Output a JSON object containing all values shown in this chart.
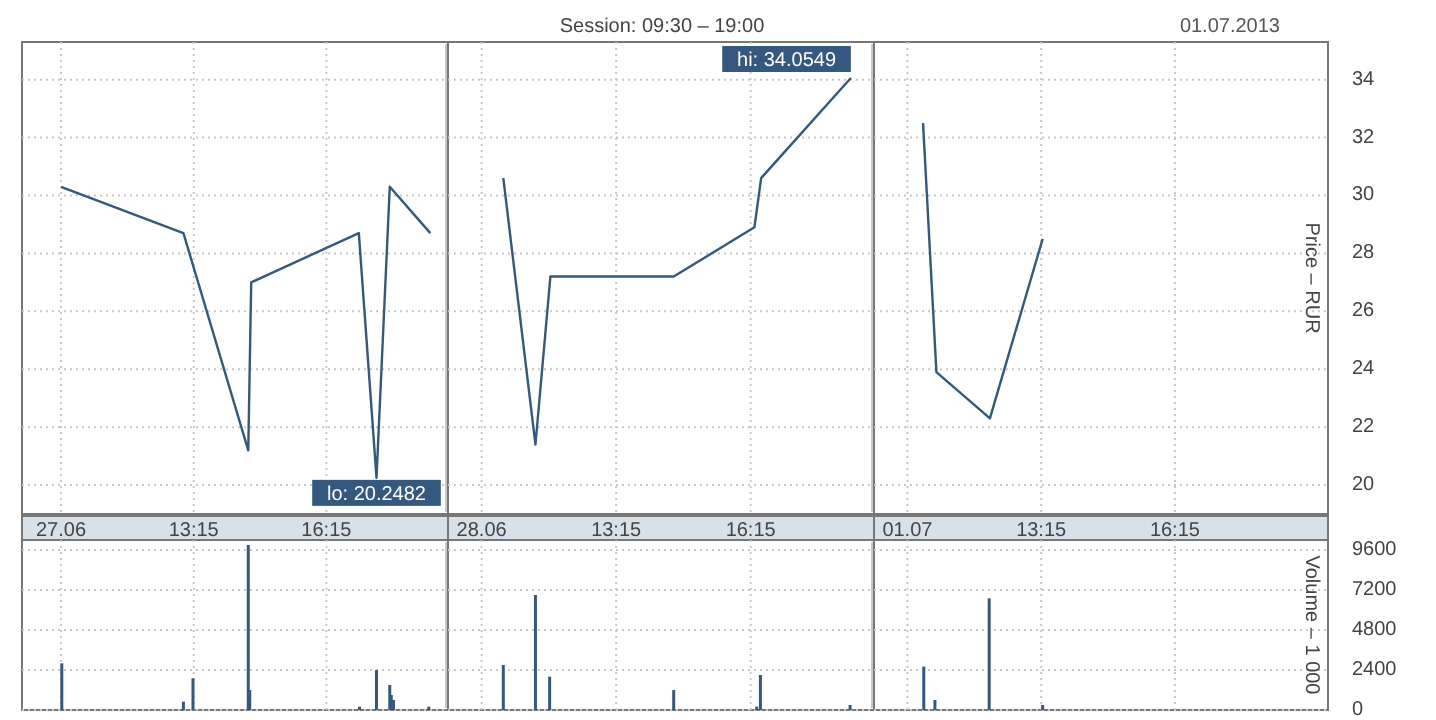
{
  "chart_data": [
    {
      "type": "line",
      "annotations": [
        {
          "text": "lo: 20.2482",
          "x": "2013-06-27T17:23",
          "y": 20.2482
        }
      ],
      "series": [
        {
          "color": "#34587f",
          "x": [
            "2013-06-27T10:15",
            "2013-06-27T13:01",
            "2013-06-27T14:29",
            "2013-06-27T14:33",
            "2013-06-27T16:59",
            "2013-06-27T17:23",
            "2013-06-27T17:41",
            "2013-06-27T18:36"
          ],
          "values": [
            30.3,
            28.7,
            21.2,
            27.0,
            28.7,
            20.2482,
            30.3,
            28.7
          ]
        }
      ],
      "xlim": [
        "2013-06-27T09:22",
        "2013-06-27T19:00"
      ],
      "xticks": [
        {
          "value": "2013-06-27T10:15",
          "label": "27.06"
        },
        {
          "value": "2013-06-27T13:15",
          "label": "13:15"
        },
        {
          "value": "2013-06-27T16:15",
          "label": "16:15"
        }
      ],
      "ylim": [
        19,
        35.3
      ],
      "yticks": [
        20,
        22,
        24,
        26,
        28,
        30,
        32,
        34
      ],
      "ref_lines": [
        {
          "axis": "x",
          "value": "2013-06-27T19:00",
          "color": "#c8c8c8"
        }
      ],
      "grid": true,
      "marker": "none",
      "line_style": "solid",
      "tick_labels": "x"
    },
    {
      "type": "line",
      "title": "Session: 09:30 – 19:00",
      "annotations": [
        {
          "text": "hi: 34.0549",
          "x": "2013-06-28T18:29",
          "y": 34.0549
        }
      ],
      "series": [
        {
          "color": "#34587f",
          "x": [
            "2013-06-28T10:44",
            "2013-06-28T11:27",
            "2013-06-28T11:47",
            "2013-06-28T14:32",
            "2013-06-28T16:20",
            "2013-06-28T16:29",
            "2013-06-28T18:29"
          ],
          "values": [
            30.6,
            21.4,
            27.2,
            27.2,
            28.9,
            30.6,
            34.0549
          ]
        }
      ],
      "xlim": [
        "2013-06-28T09:30",
        "2013-06-28T19:00"
      ],
      "xticks": [
        {
          "value": "2013-06-28T10:15",
          "label": "28.06"
        },
        {
          "value": "2013-06-28T13:15",
          "label": "13:15"
        },
        {
          "value": "2013-06-28T16:15",
          "label": "16:15"
        }
      ],
      "ylim": [
        19,
        35.3
      ],
      "yticks": [
        20,
        22,
        24,
        26,
        28,
        30,
        32,
        34
      ],
      "ref_lines": [
        {
          "axis": "x",
          "value": "2013-06-28T19:00",
          "color": "#c8c8c8"
        }
      ],
      "grid": true,
      "marker": "none",
      "line_style": "solid",
      "tick_labels": "x"
    },
    {
      "type": "line",
      "ylabel": "Price – RUR",
      "annotations": [
        "01.07.2013"
      ],
      "series": [
        {
          "color": "#34587f",
          "x": [
            "2013-07-01T10:36",
            "2013-07-01T10:54",
            "2013-07-01T12:06",
            "2013-07-01T13:17"
          ],
          "values": [
            32.5,
            23.9,
            22.3,
            28.5
          ]
        }
      ],
      "xlim": [
        "2013-07-01T09:30",
        "2013-07-01T19:41"
      ],
      "xticks": [
        {
          "value": "2013-07-01T10:15",
          "label": "01.07"
        },
        {
          "value": "2013-07-01T13:15",
          "label": "13:15"
        },
        {
          "value": "2013-07-01T16:15",
          "label": "16:15"
        }
      ],
      "ylim": [
        19,
        35.3
      ],
      "yticks": [
        20,
        22,
        24,
        26,
        28,
        30,
        32,
        34
      ],
      "grid": true,
      "marker": "none",
      "line_style": "solid"
    },
    {
      "type": "bar",
      "series": [
        {
          "color": "#34587f",
          "x": [
            "2013-06-27T10:16",
            "2013-06-27T13:01",
            "2013-06-27T13:14",
            "2013-06-27T14:29",
            "2013-06-27T14:31",
            "2013-06-27T17:00",
            "2013-06-27T17:23",
            "2013-06-27T17:41",
            "2013-06-27T17:43",
            "2013-06-27T17:46",
            "2013-06-27T18:34"
          ],
          "values": [
            2800,
            500,
            1900,
            9900,
            1200,
            200,
            2400,
            1500,
            900,
            600,
            200
          ]
        }
      ],
      "xlim": [
        "2013-06-27T09:22",
        "2013-06-27T19:00"
      ],
      "xticks": [
        {
          "value": "2013-06-27T10:15",
          "label": null
        },
        {
          "value": "2013-06-27T13:15",
          "label": null
        },
        {
          "value": "2013-06-27T16:15",
          "label": null
        }
      ],
      "ylim": [
        0,
        10200
      ],
      "yticks": [
        0,
        2400,
        4800,
        7200,
        9600
      ],
      "ref_lines": [
        {
          "axis": "x",
          "value": "2013-06-27T19:00",
          "color": "#c8c8c8"
        }
      ],
      "grid": true,
      "tick_labels": false
    },
    {
      "type": "bar",
      "series": [
        {
          "color": "#34587f",
          "x": [
            "2013-06-28T10:44",
            "2013-06-28T11:27",
            "2013-06-28T11:46",
            "2013-06-28T14:32",
            "2013-06-28T16:23",
            "2013-06-28T16:28",
            "2013-06-28T18:28"
          ],
          "values": [
            2700,
            6900,
            2000,
            1200,
            200,
            2100,
            300
          ]
        }
      ],
      "xlim": [
        "2013-06-28T09:30",
        "2013-06-28T19:00"
      ],
      "xticks": [
        {
          "value": "2013-06-28T10:15",
          "label": null
        },
        {
          "value": "2013-06-28T13:15",
          "label": null
        },
        {
          "value": "2013-06-28T16:15",
          "label": null
        }
      ],
      "ylim": [
        0,
        10200
      ],
      "yticks": [
        0,
        2400,
        4800,
        7200,
        9600
      ],
      "ref_lines": [
        {
          "axis": "x",
          "value": "2013-06-28T19:00",
          "color": "#c8c8c8"
        }
      ],
      "grid": true,
      "tick_labels": false
    },
    {
      "type": "bar",
      "ylabel": "Volume – 1 000",
      "series": [
        {
          "color": "#34587f",
          "x": [
            "2013-07-01T10:37",
            "2013-07-01T10:52",
            "2013-07-01T12:05",
            "2013-07-01T13:17"
          ],
          "values": [
            2600,
            600,
            6700,
            300
          ]
        }
      ],
      "xlim": [
        "2013-07-01T09:30",
        "2013-07-01T19:41"
      ],
      "xticks": [
        {
          "value": "2013-07-01T10:15",
          "label": null
        },
        {
          "value": "2013-07-01T13:15",
          "label": null
        },
        {
          "value": "2013-07-01T16:15",
          "label": null
        }
      ],
      "ylim": [
        0,
        10200
      ],
      "yticks": [
        0,
        2400,
        4800,
        7200,
        9600
      ],
      "grid": true,
      "tick_labels": "y"
    }
  ]
}
